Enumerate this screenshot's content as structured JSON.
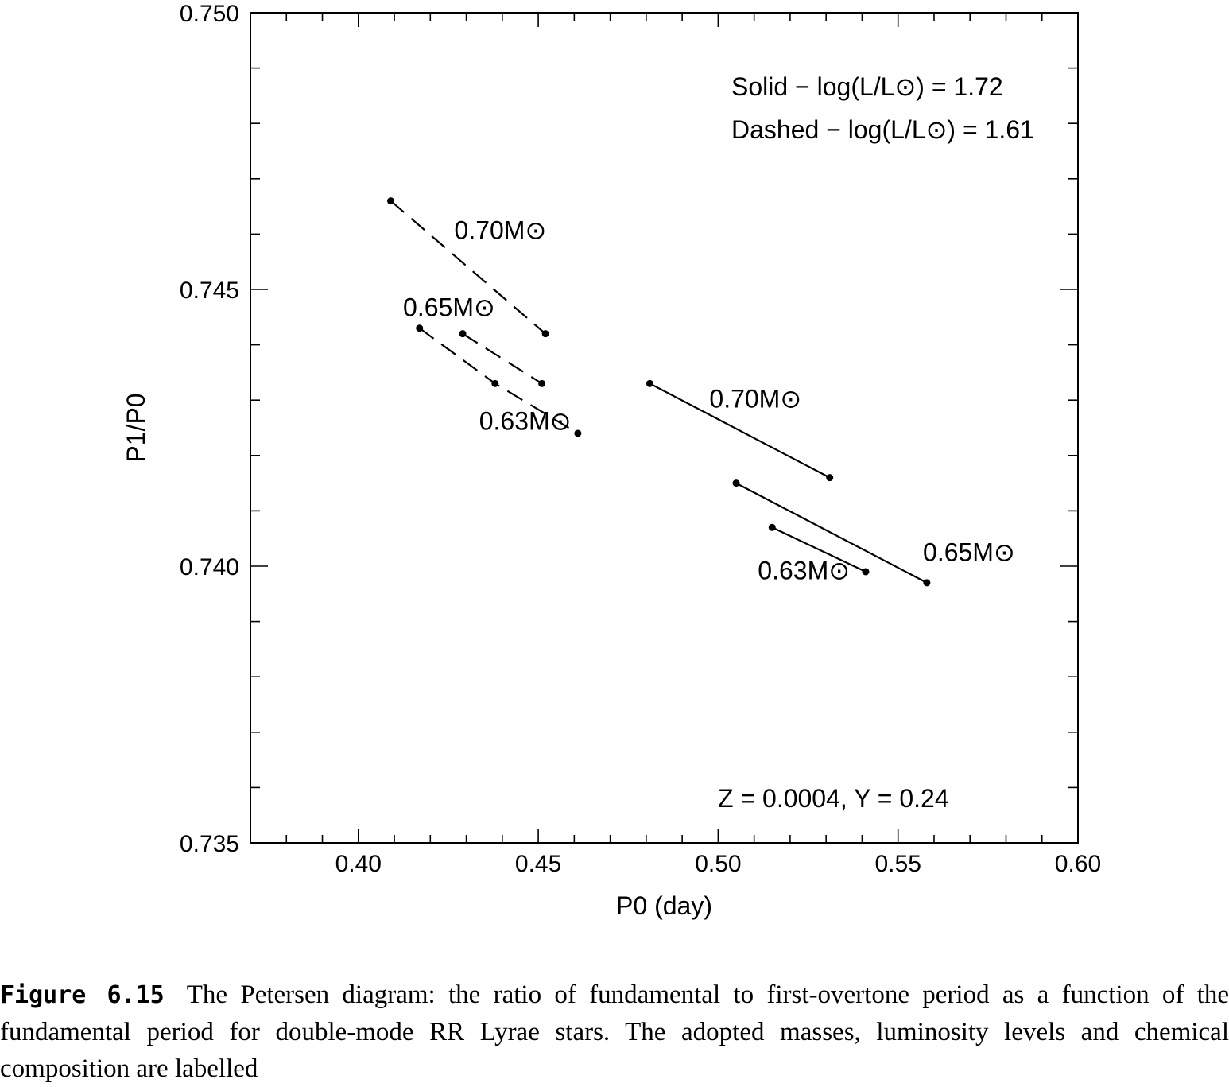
{
  "chart_data": {
    "type": "line",
    "xlabel": "P0 (day)",
    "ylabel": "P1/P0",
    "xlim": [
      0.37,
      0.6
    ],
    "ylim": [
      0.735,
      0.75
    ],
    "x_ticks": [
      "0.40",
      "0.45",
      "0.50",
      "0.55",
      "0.60"
    ],
    "y_ticks": [
      "0.735",
      "0.740",
      "0.745",
      "0.750"
    ],
    "grid": false,
    "series": [
      {
        "name": "0.70M⊙",
        "style": "dashed",
        "x": [
          0.409,
          0.452
        ],
        "y": [
          0.7466,
          0.7442
        ]
      },
      {
        "name": "0.65M⊙",
        "style": "dashed",
        "x": [
          0.429,
          0.451
        ],
        "y": [
          0.7442,
          0.7433
        ]
      },
      {
        "name": "0.63M⊙",
        "style": "dashed",
        "x": [
          0.417,
          0.438,
          0.461
        ],
        "y": [
          0.7443,
          0.7433,
          0.7424
        ]
      },
      {
        "name": "0.70M⊙",
        "style": "solid",
        "x": [
          0.481,
          0.531
        ],
        "y": [
          0.7433,
          0.7416
        ]
      },
      {
        "name": "0.65M⊙",
        "style": "solid",
        "x": [
          0.505,
          0.558
        ],
        "y": [
          0.7415,
          0.7397
        ]
      },
      {
        "name": "0.63M⊙",
        "style": "solid",
        "x": [
          0.515,
          0.541
        ],
        "y": [
          0.7407,
          0.7399
        ]
      }
    ],
    "annotations": {
      "solid_legend": "Solid − log(L/L⊙) = 1.72",
      "dashed_legend": "Dashed − log(L/L⊙) = 1.61",
      "composition": "Z = 0.0004,  Y = 0.24"
    }
  },
  "caption": {
    "label": "Figure 6.15",
    "text": "The Petersen diagram: the ratio of fundamental to first-overtone period as a function of the fundamental period for double-mode RR Lyrae stars. The adopted masses, luminosity levels and chemical composition are labelled"
  }
}
